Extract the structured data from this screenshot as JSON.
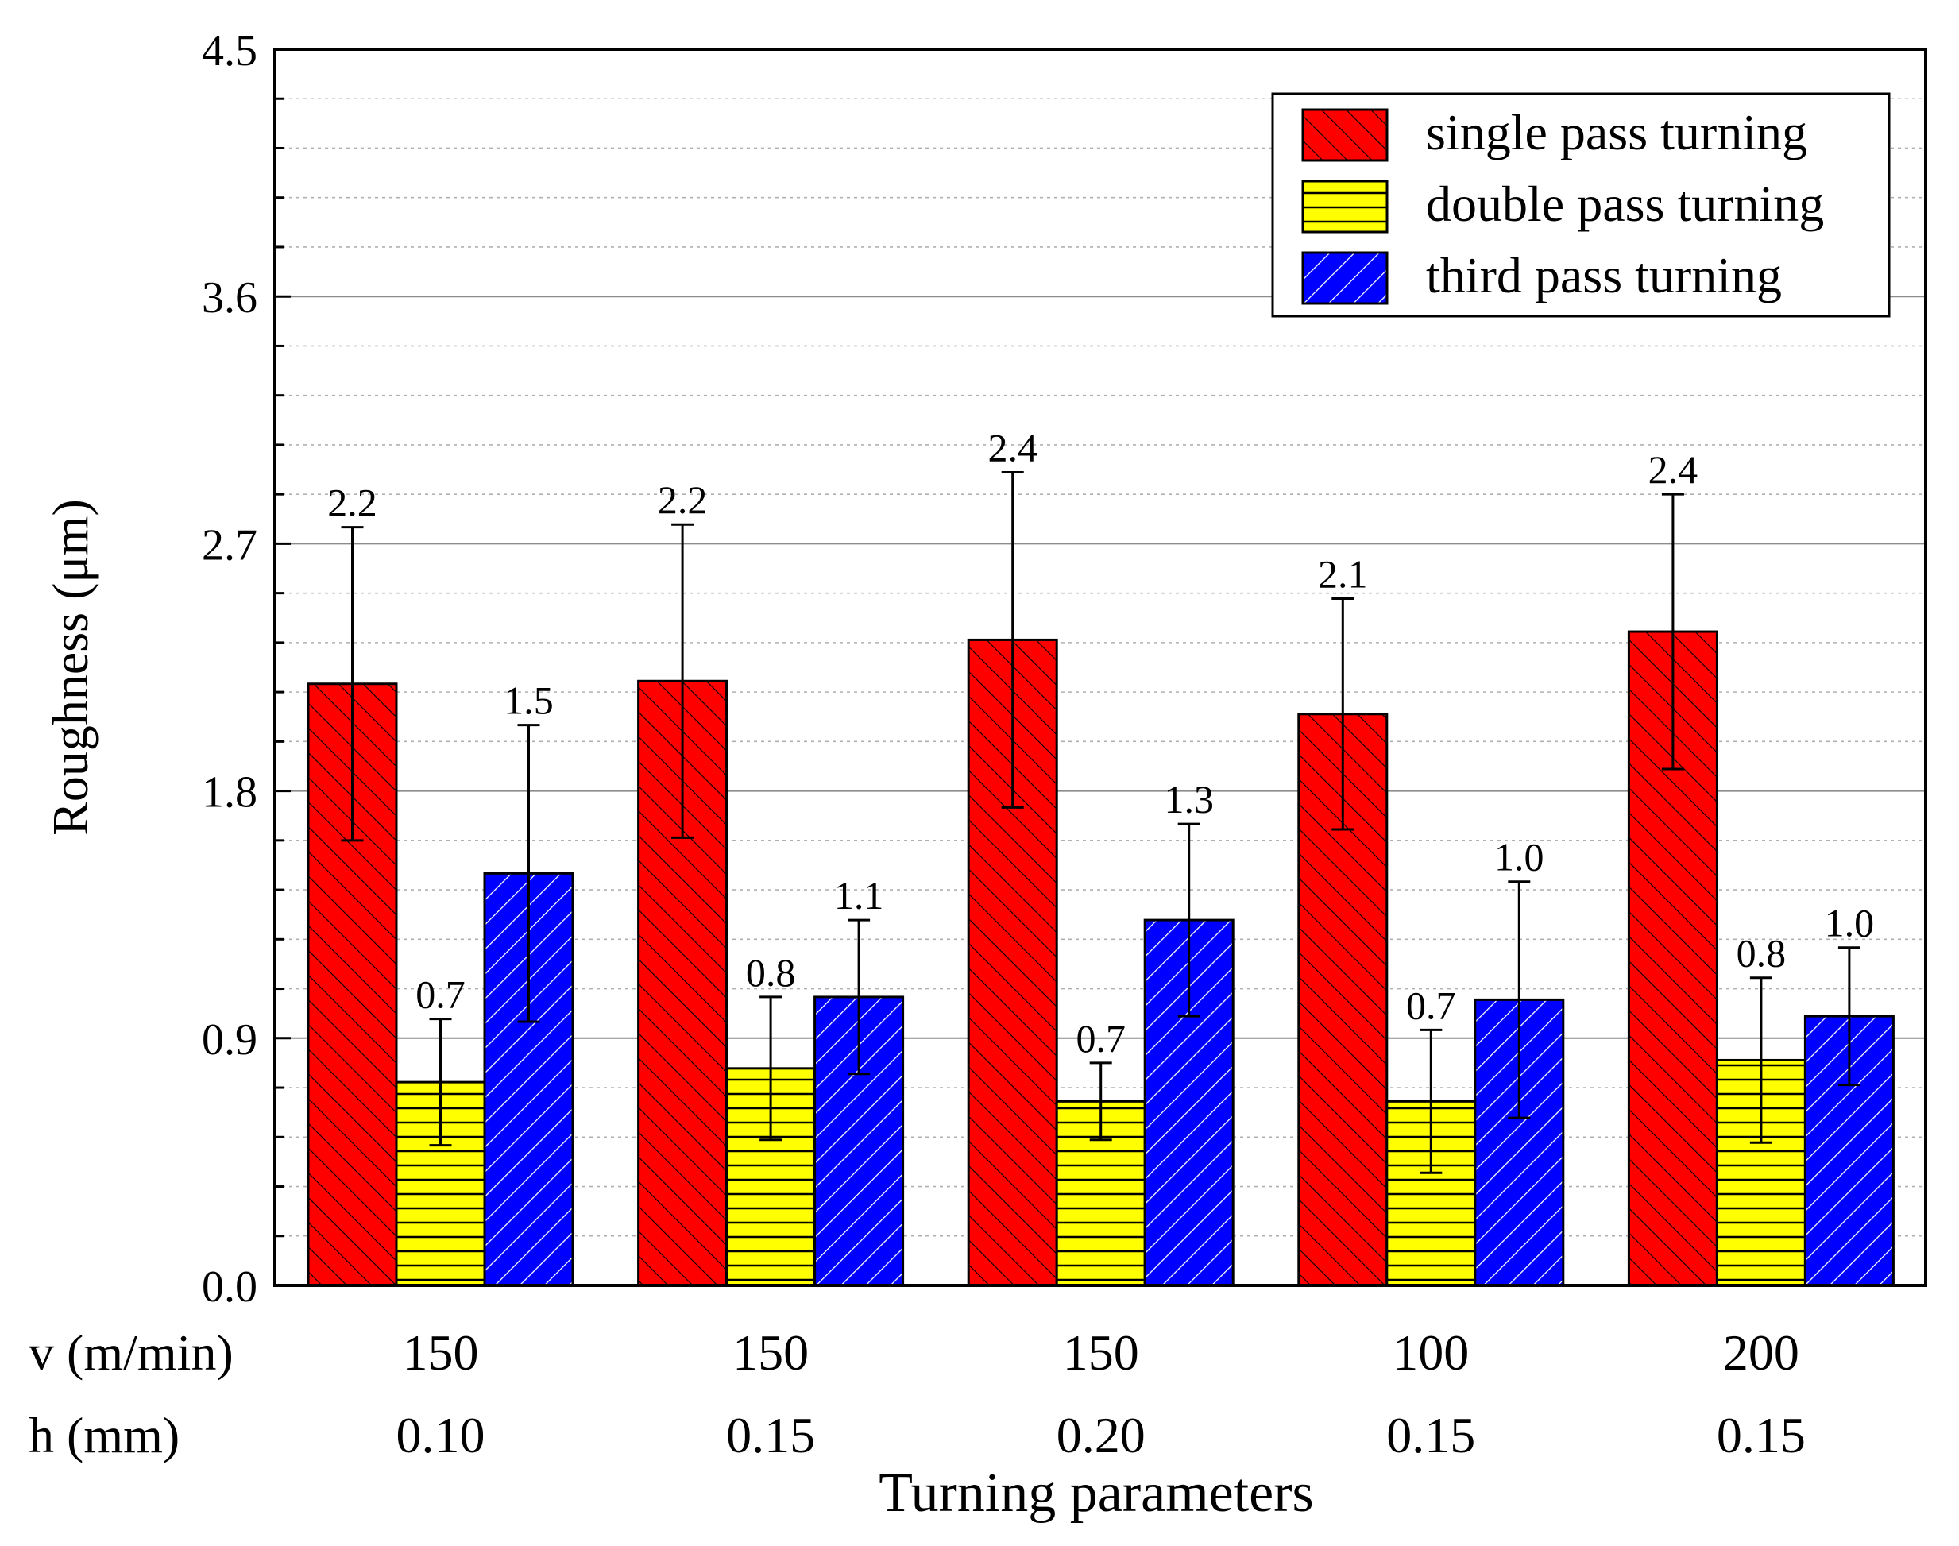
{
  "chart_data": {
    "type": "bar",
    "xlabel": "Turning parameters",
    "ylabel": "Roughness (μm)",
    "ylim": [
      0,
      4.5
    ],
    "yticks": [
      "0.0",
      "0.9",
      "1.8",
      "2.7",
      "3.6",
      "4.5"
    ],
    "grid": true,
    "legend_position": "top-right",
    "param_rows": [
      {
        "label": "v (m/min)",
        "values": [
          "150",
          "150",
          "150",
          "100",
          "200"
        ]
      },
      {
        "label": "h (mm)",
        "values": [
          "0.10",
          "0.15",
          "0.20",
          "0.15",
          "0.15"
        ]
      }
    ],
    "series": [
      {
        "name": "single pass turning",
        "color": "#ff0000",
        "hatch": "forward-diagonal",
        "values": [
          2.19,
          2.2,
          2.35,
          2.08,
          2.38
        ],
        "errors": [
          0.57,
          0.57,
          0.61,
          0.42,
          0.5
        ],
        "labels": [
          "2.2",
          "2.2",
          "2.4",
          "2.1",
          "2.4"
        ]
      },
      {
        "name": "double pass turning",
        "color": "#ffff00",
        "hatch": "horizontal",
        "values": [
          0.74,
          0.79,
          0.67,
          0.67,
          0.82
        ],
        "errors": [
          0.23,
          0.26,
          0.14,
          0.26,
          0.3
        ],
        "labels": [
          "0.7",
          "0.8",
          "0.7",
          "0.7",
          "0.8"
        ]
      },
      {
        "name": "third pass turning",
        "color": "#0000ff",
        "hatch": "back-diagonal",
        "values": [
          1.5,
          1.05,
          1.33,
          1.04,
          0.98
        ],
        "errors": [
          0.54,
          0.28,
          0.35,
          0.43,
          0.25
        ],
        "labels": [
          "1.5",
          "1.1",
          "1.3",
          "1.0",
          "1.0"
        ]
      }
    ]
  }
}
